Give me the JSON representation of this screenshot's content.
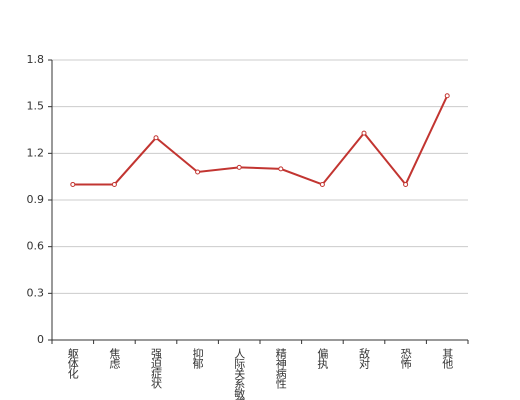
{
  "chart_data": {
    "type": "line",
    "categories": [
      "躯体化",
      "焦虑",
      "强迫症状",
      "抑郁",
      "人际关系敏感",
      "精神病性",
      "偏执",
      "敌对",
      "恐怖",
      "其他"
    ],
    "series": [
      {
        "color": "#c23531",
        "values": [
          1.0,
          1.0,
          1.3,
          1.08,
          1.11,
          1.1,
          1.0,
          1.33,
          1.0,
          1.57
        ]
      }
    ],
    "ylim": [
      0,
      1.8
    ],
    "yticks": [
      0,
      0.3,
      0.6,
      0.9,
      1.2,
      1.5,
      1.8
    ],
    "grid": true
  }
}
